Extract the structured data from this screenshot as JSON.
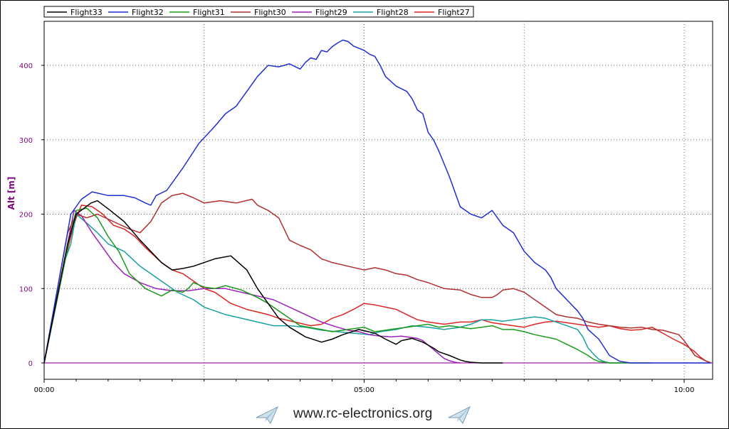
{
  "chart_data": {
    "type": "line",
    "ylabel": "Alt [m]",
    "xlabel": "",
    "xlim_seconds": [
      0,
      625
    ],
    "ylim": [
      -22,
      460
    ],
    "x_ticks": [
      {
        "value": 0,
        "label": "00:00"
      },
      {
        "value": 300,
        "label": "05:00"
      },
      {
        "value": 600,
        "label": "10:00"
      }
    ],
    "y_ticks": [
      {
        "value": 0,
        "label": "0"
      },
      {
        "value": 100,
        "label": "100"
      },
      {
        "value": 200,
        "label": "200"
      },
      {
        "value": 300,
        "label": "300"
      },
      {
        "value": 400,
        "label": "400"
      }
    ],
    "grid": true,
    "legend_position": "top",
    "zero_line_color": "#a020a0",
    "series": [
      {
        "name": "Flight33",
        "color": "#000000",
        "x": [
          0,
          22,
          30,
          44,
          50,
          62,
          75,
          90,
          100,
          110,
          120,
          130,
          140,
          160,
          175,
          190,
          200,
          215,
          220,
          230,
          245,
          260,
          270,
          280,
          295,
          310,
          320,
          330,
          335,
          345,
          355,
          365,
          370,
          380,
          385,
          390,
          395,
          400,
          410,
          415,
          420,
          424,
          427,
          430
        ],
        "y": [
          0,
          160,
          200,
          215,
          218,
          205,
          190,
          165,
          150,
          135,
          125,
          127,
          130,
          140,
          144,
          125,
          100,
          70,
          60,
          48,
          35,
          28,
          32,
          38,
          45,
          40,
          32,
          25,
          30,
          33,
          28,
          20,
          15,
          10,
          7,
          4,
          2,
          1,
          0,
          0,
          0,
          0,
          0,
          0
        ]
      },
      {
        "name": "Flight32",
        "color": "#1f2fd0",
        "x": [
          0,
          25,
          35,
          45,
          60,
          75,
          85,
          95,
          100,
          105,
          115,
          130,
          145,
          160,
          170,
          180,
          190,
          200,
          210,
          220,
          230,
          240,
          245,
          250,
          255,
          260,
          265,
          270,
          275,
          280,
          285,
          290,
          295,
          300,
          305,
          310,
          315,
          320,
          330,
          340,
          345,
          350,
          355,
          360,
          365,
          370,
          380,
          390,
          400,
          410,
          420,
          430,
          440,
          450,
          460,
          470,
          475,
          480,
          490,
          500,
          505,
          510,
          520,
          530,
          540,
          550,
          560,
          570,
          580,
          590,
          595,
          600,
          610,
          625
        ],
        "y": [
          0,
          200,
          220,
          230,
          225,
          225,
          222,
          215,
          212,
          225,
          232,
          262,
          295,
          318,
          335,
          345,
          365,
          385,
          400,
          398,
          402,
          395,
          404,
          410,
          408,
          420,
          418,
          425,
          430,
          434,
          432,
          426,
          423,
          420,
          415,
          412,
          400,
          385,
          372,
          365,
          355,
          340,
          335,
          310,
          300,
          285,
          250,
          210,
          200,
          195,
          205,
          185,
          175,
          150,
          135,
          125,
          115,
          100,
          85,
          70,
          60,
          45,
          32,
          10,
          2,
          0,
          0,
          0,
          0,
          0,
          0,
          0,
          0,
          0
        ]
      },
      {
        "name": "Flight31",
        "color": "#1a9a1a",
        "x": [
          0,
          24,
          30,
          40,
          50,
          60,
          70,
          80,
          95,
          110,
          120,
          130,
          135,
          140,
          150,
          160,
          170,
          185,
          200,
          210,
          220,
          230,
          240,
          260,
          270,
          280,
          290,
          300,
          310,
          320,
          330,
          340,
          350,
          360,
          370,
          380,
          390,
          400,
          410,
          420,
          430,
          440,
          450,
          460,
          470,
          480,
          490,
          500,
          510,
          515,
          520,
          530,
          540,
          550,
          560,
          570
        ],
        "y": [
          0,
          170,
          205,
          208,
          195,
          170,
          150,
          120,
          100,
          90,
          98,
          95,
          100,
          108,
          102,
          100,
          104,
          98,
          88,
          80,
          70,
          60,
          50,
          45,
          42,
          44,
          46,
          48,
          42,
          44,
          46,
          48,
          50,
          52,
          48,
          50,
          48,
          46,
          48,
          50,
          45,
          45,
          42,
          38,
          35,
          32,
          25,
          18,
          10,
          5,
          2,
          0,
          0,
          0,
          0,
          0
        ]
      },
      {
        "name": "Flight30",
        "color": "#b03030",
        "x": [
          0,
          22,
          30,
          40,
          50,
          65,
          80,
          90,
          100,
          110,
          120,
          130,
          140,
          150,
          165,
          180,
          195,
          200,
          210,
          220,
          225,
          230,
          240,
          250,
          260,
          270,
          285,
          300,
          310,
          320,
          330,
          340,
          350,
          360,
          375,
          390,
          400,
          410,
          420,
          425,
          430,
          440,
          450,
          460,
          470,
          480,
          490,
          500,
          510,
          520,
          530,
          540,
          550,
          560,
          570,
          580,
          590,
          595,
          600,
          605,
          610,
          620,
          625
        ],
        "y": [
          0,
          175,
          200,
          195,
          200,
          190,
          180,
          175,
          190,
          215,
          225,
          228,
          222,
          215,
          218,
          215,
          220,
          212,
          205,
          195,
          180,
          165,
          158,
          152,
          140,
          135,
          130,
          125,
          128,
          125,
          120,
          118,
          112,
          108,
          100,
          98,
          92,
          88,
          88,
          92,
          98,
          100,
          95,
          85,
          75,
          65,
          62,
          60,
          55,
          52,
          50,
          48,
          47,
          48,
          45,
          44,
          40,
          38,
          30,
          20,
          10,
          3,
          0
        ]
      },
      {
        "name": "Flight29",
        "color": "#9a22b8",
        "x": [
          0,
          22,
          28,
          35,
          45,
          55,
          65,
          75,
          90,
          105,
          120,
          135,
          150,
          170,
          185,
          200,
          215,
          230,
          245,
          260,
          275,
          285,
          295,
          305,
          315,
          325,
          335,
          345,
          350,
          355,
          360,
          365,
          370,
          375,
          380,
          385,
          390
        ],
        "y": [
          0,
          160,
          205,
          198,
          175,
          155,
          135,
          120,
          108,
          100,
          97,
          97,
          100,
          100,
          95,
          90,
          85,
          75,
          65,
          55,
          48,
          44,
          42,
          38,
          36,
          35,
          36,
          34,
          33,
          30,
          24,
          18,
          12,
          6,
          3,
          1,
          0
        ]
      },
      {
        "name": "Flight28",
        "color": "#1aa0a0",
        "x": [
          0,
          20,
          25,
          30,
          40,
          50,
          60,
          75,
          90,
          110,
          125,
          140,
          150,
          160,
          170,
          185,
          200,
          215,
          230,
          245,
          260,
          275,
          290,
          305,
          315,
          330,
          345,
          360,
          375,
          390,
          400,
          410,
          420,
          430,
          440,
          450,
          460,
          470,
          480,
          490,
          500,
          505,
          510,
          515,
          520,
          525,
          530,
          540
        ],
        "y": [
          0,
          140,
          160,
          200,
          188,
          175,
          160,
          150,
          130,
          110,
          95,
          85,
          75,
          70,
          65,
          60,
          55,
          50,
          50,
          48,
          44,
          42,
          40,
          38,
          42,
          45,
          50,
          48,
          45,
          48,
          52,
          58,
          58,
          56,
          58,
          60,
          62,
          60,
          55,
          50,
          45,
          35,
          20,
          12,
          5,
          2,
          0,
          0
        ]
      },
      {
        "name": "Flight27",
        "color": "#e02424",
        "x": [
          0,
          20,
          25,
          30,
          35,
          45,
          55,
          65,
          75,
          85,
          95,
          110,
          120,
          130,
          140,
          150,
          160,
          175,
          190,
          210,
          220,
          235,
          250,
          260,
          270,
          280,
          290,
          300,
          310,
          320,
          330,
          340,
          350,
          360,
          375,
          390,
          400,
          410,
          420,
          430,
          440,
          450,
          460,
          470,
          480,
          490,
          500,
          510,
          520,
          530,
          540,
          550,
          560,
          570,
          580,
          590,
          600,
          610,
          615,
          620,
          625
        ],
        "y": [
          0,
          140,
          170,
          195,
          212,
          210,
          200,
          185,
          180,
          170,
          155,
          135,
          125,
          120,
          110,
          100,
          95,
          80,
          72,
          65,
          60,
          55,
          50,
          52,
          60,
          65,
          72,
          80,
          78,
          75,
          72,
          65,
          58,
          55,
          52,
          55,
          55,
          58,
          54,
          52,
          50,
          48,
          52,
          55,
          56,
          54,
          52,
          50,
          48,
          50,
          46,
          44,
          45,
          48,
          40,
          32,
          25,
          15,
          8,
          3,
          0
        ]
      }
    ]
  },
  "footer": {
    "text": "www.rc-electronics.org"
  }
}
